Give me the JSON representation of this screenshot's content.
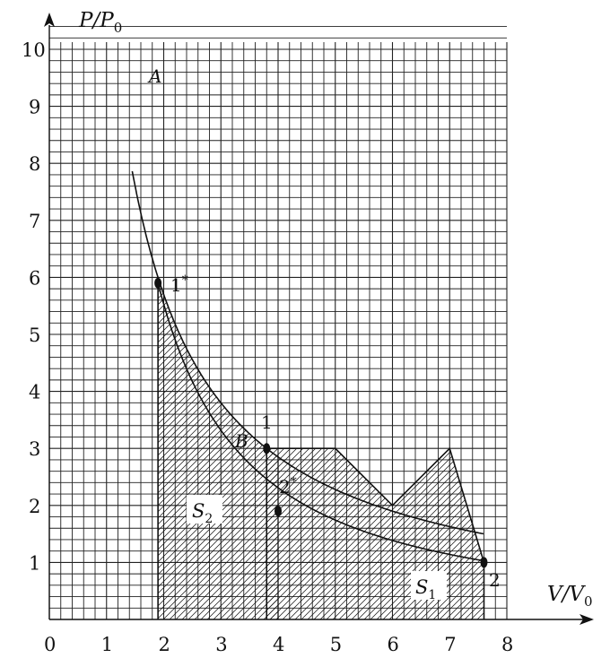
{
  "axes": {
    "y_title": "P/P",
    "y_title_sub": "0",
    "x_title": "V/V",
    "x_title_sub": "0",
    "x_ticks": [
      "0",
      "1",
      "2",
      "3",
      "4",
      "5",
      "6",
      "7",
      "8"
    ],
    "y_ticks": [
      "1",
      "2",
      "3",
      "4",
      "5",
      "6",
      "7",
      "8",
      "9",
      "10"
    ],
    "xlim": [
      0,
      8
    ],
    "ylim": [
      0,
      10
    ],
    "grid_minor_per_unit": 5
  },
  "points": {
    "A": {
      "label": "A",
      "V": 1.45,
      "P": 9.5
    },
    "B": {
      "label": "B",
      "V": 3.8,
      "P": 3.0
    },
    "p1": {
      "label": "1",
      "V": 3.8,
      "P": 3.0
    },
    "p2": {
      "label": "2",
      "V": 7.6,
      "P": 1.0
    },
    "p1s": {
      "label": "1",
      "sup": "*",
      "V": 1.9,
      "P": 5.9
    },
    "p2s": {
      "label": "2",
      "sup": "*",
      "V": 4.0,
      "P": 1.9
    }
  },
  "curve_AB": {
    "k": 11.4
  },
  "process_path": [
    [
      3.8,
      3.0
    ],
    [
      5.0,
      3.0
    ],
    [
      6.0,
      2.0
    ],
    [
      7.0,
      3.0
    ],
    [
      7.6,
      1.0
    ]
  ],
  "regions": {
    "S1": {
      "label": "S",
      "sub": "1"
    },
    "S2": {
      "label": "S",
      "sub": "2"
    }
  },
  "colors": {
    "ink": "#111111",
    "grid": "#222222",
    "bg": "#ffffff"
  }
}
